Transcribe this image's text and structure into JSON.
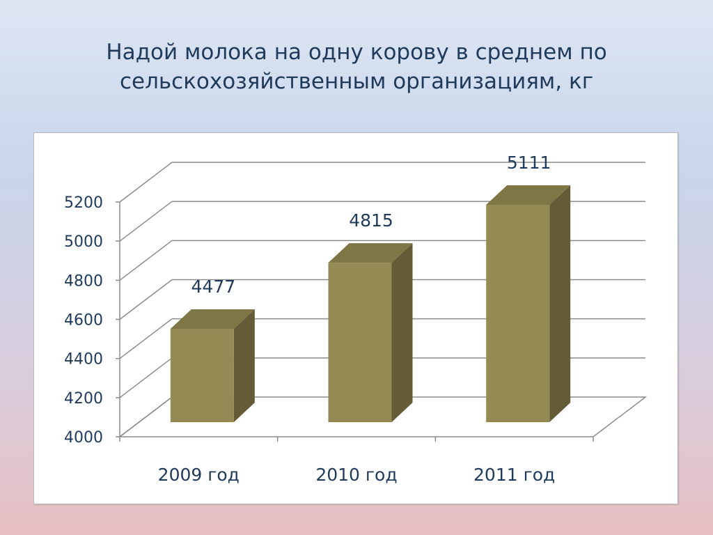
{
  "slide": {
    "title_line1": "Надой молока на одну корову в среднем по",
    "title_line2": "сельскохозяйственным организациям, кг"
  },
  "chart_data": {
    "type": "bar",
    "style": "3d-column",
    "categories": [
      "2009 год",
      "2010 год",
      "2011 год"
    ],
    "values": [
      4477,
      4815,
      5111
    ],
    "ylim": [
      4000,
      5200
    ],
    "yticks": [
      4000,
      4200,
      4400,
      4600,
      4800,
      5000,
      5200
    ],
    "data_labels": [
      "4477",
      "4815",
      "5111"
    ],
    "grid": true,
    "legend": "none",
    "colors": {
      "bar_front": "#948a54",
      "bar_side": "#635c36",
      "bar_top": "#7f7645",
      "text": "#1f3a5a",
      "grid": "#8c8c8c"
    }
  }
}
